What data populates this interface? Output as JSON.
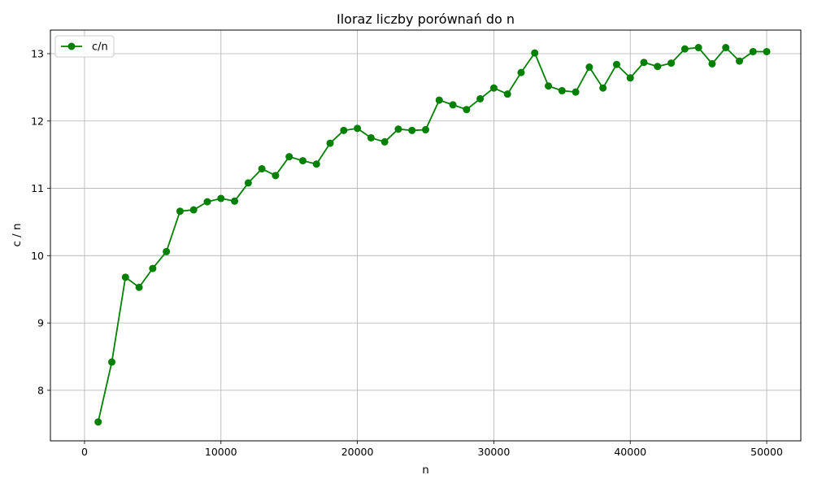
{
  "chart_data": {
    "type": "line",
    "title": "Iloraz liczby porównań do n",
    "xlabel": "n",
    "ylabel": "c / n",
    "xlim": [
      -2500,
      52500
    ],
    "ylim": [
      7.25,
      13.35
    ],
    "x_ticks": [
      0,
      10000,
      20000,
      30000,
      40000,
      50000
    ],
    "y_ticks": [
      8,
      9,
      10,
      11,
      12,
      13
    ],
    "grid": true,
    "legend": "top-left",
    "series": [
      {
        "name": "c/n",
        "color": "#008000",
        "marker": "circle",
        "x": [
          1000,
          2000,
          3000,
          4000,
          5000,
          6000,
          7000,
          8000,
          9000,
          10000,
          11000,
          12000,
          13000,
          14000,
          15000,
          16000,
          17000,
          18000,
          19000,
          20000,
          21000,
          22000,
          23000,
          24000,
          25000,
          26000,
          27000,
          28000,
          29000,
          30000,
          31000,
          32000,
          33000,
          34000,
          35000,
          36000,
          37000,
          38000,
          39000,
          40000,
          41000,
          42000,
          43000,
          44000,
          45000,
          46000,
          47000,
          48000,
          49000,
          50000
        ],
        "y": [
          7.53,
          8.42,
          9.68,
          9.53,
          9.81,
          10.06,
          10.66,
          10.68,
          10.8,
          10.85,
          10.81,
          11.08,
          11.29,
          11.19,
          11.47,
          11.41,
          11.36,
          11.67,
          11.86,
          11.89,
          11.75,
          11.69,
          11.88,
          11.86,
          11.87,
          12.31,
          12.24,
          12.17,
          12.33,
          12.49,
          12.4,
          12.72,
          13.01,
          12.52,
          12.45,
          12.43,
          12.8,
          12.49,
          12.84,
          12.64,
          12.87,
          12.81,
          12.86,
          13.07,
          13.09,
          12.85,
          13.09,
          12.89,
          13.03,
          13.03
        ]
      }
    ]
  }
}
